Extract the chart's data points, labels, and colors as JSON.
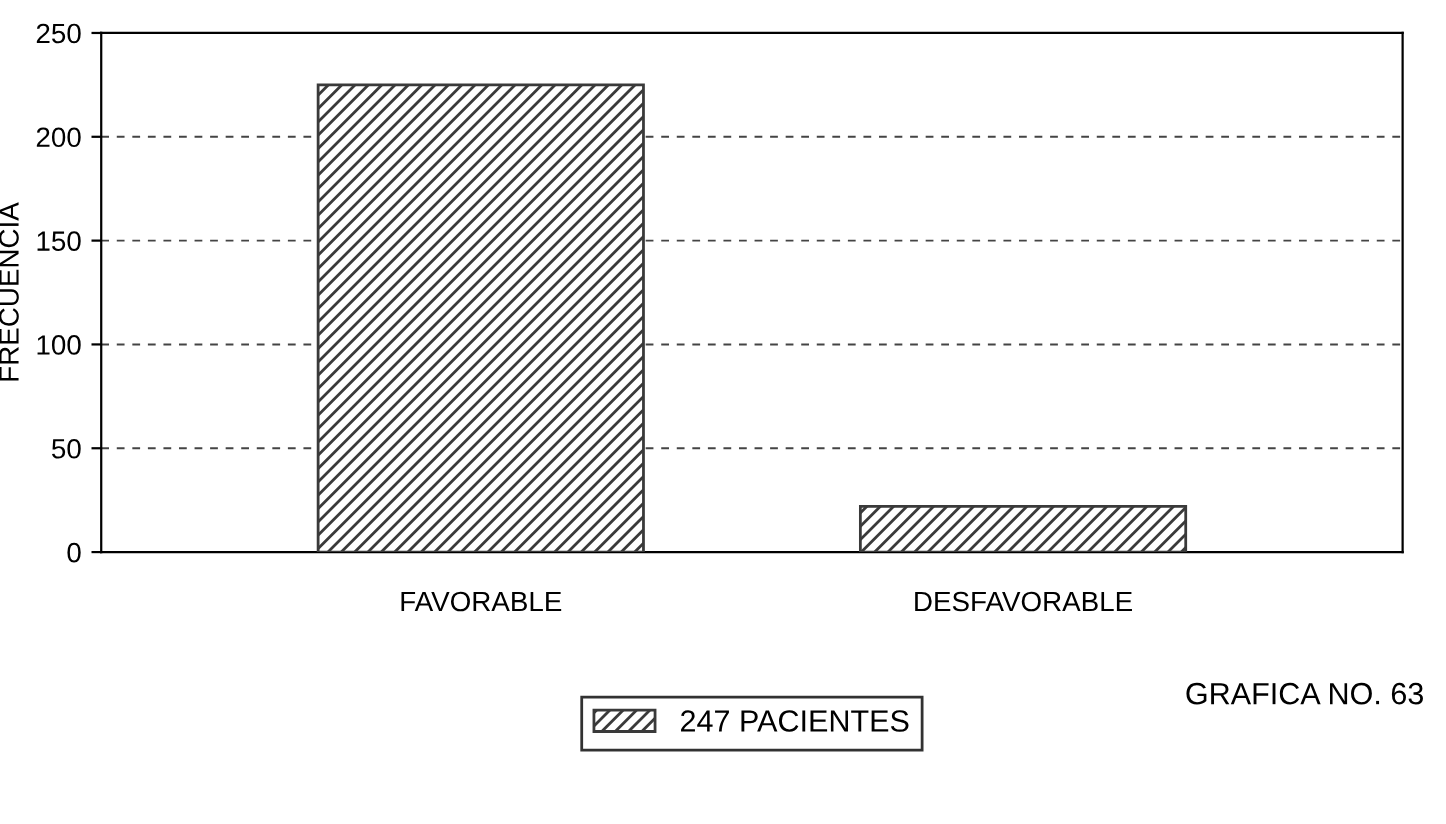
{
  "chart_data": {
    "type": "bar",
    "ylabel": "FRECUENCIA",
    "categories": [
      "FAVORABLE",
      "DESFAVORABLE"
    ],
    "series": [
      {
        "name": "247 PACIENTES",
        "color": "#3a3a3a",
        "values": [
          225,
          22
        ]
      }
    ],
    "ylim": [
      0,
      250
    ],
    "yticks": [
      0,
      50,
      100,
      150,
      200,
      250
    ],
    "grid": "y",
    "legend": "bottom",
    "annotations": [
      "GRAFICA NO. 63"
    ]
  }
}
